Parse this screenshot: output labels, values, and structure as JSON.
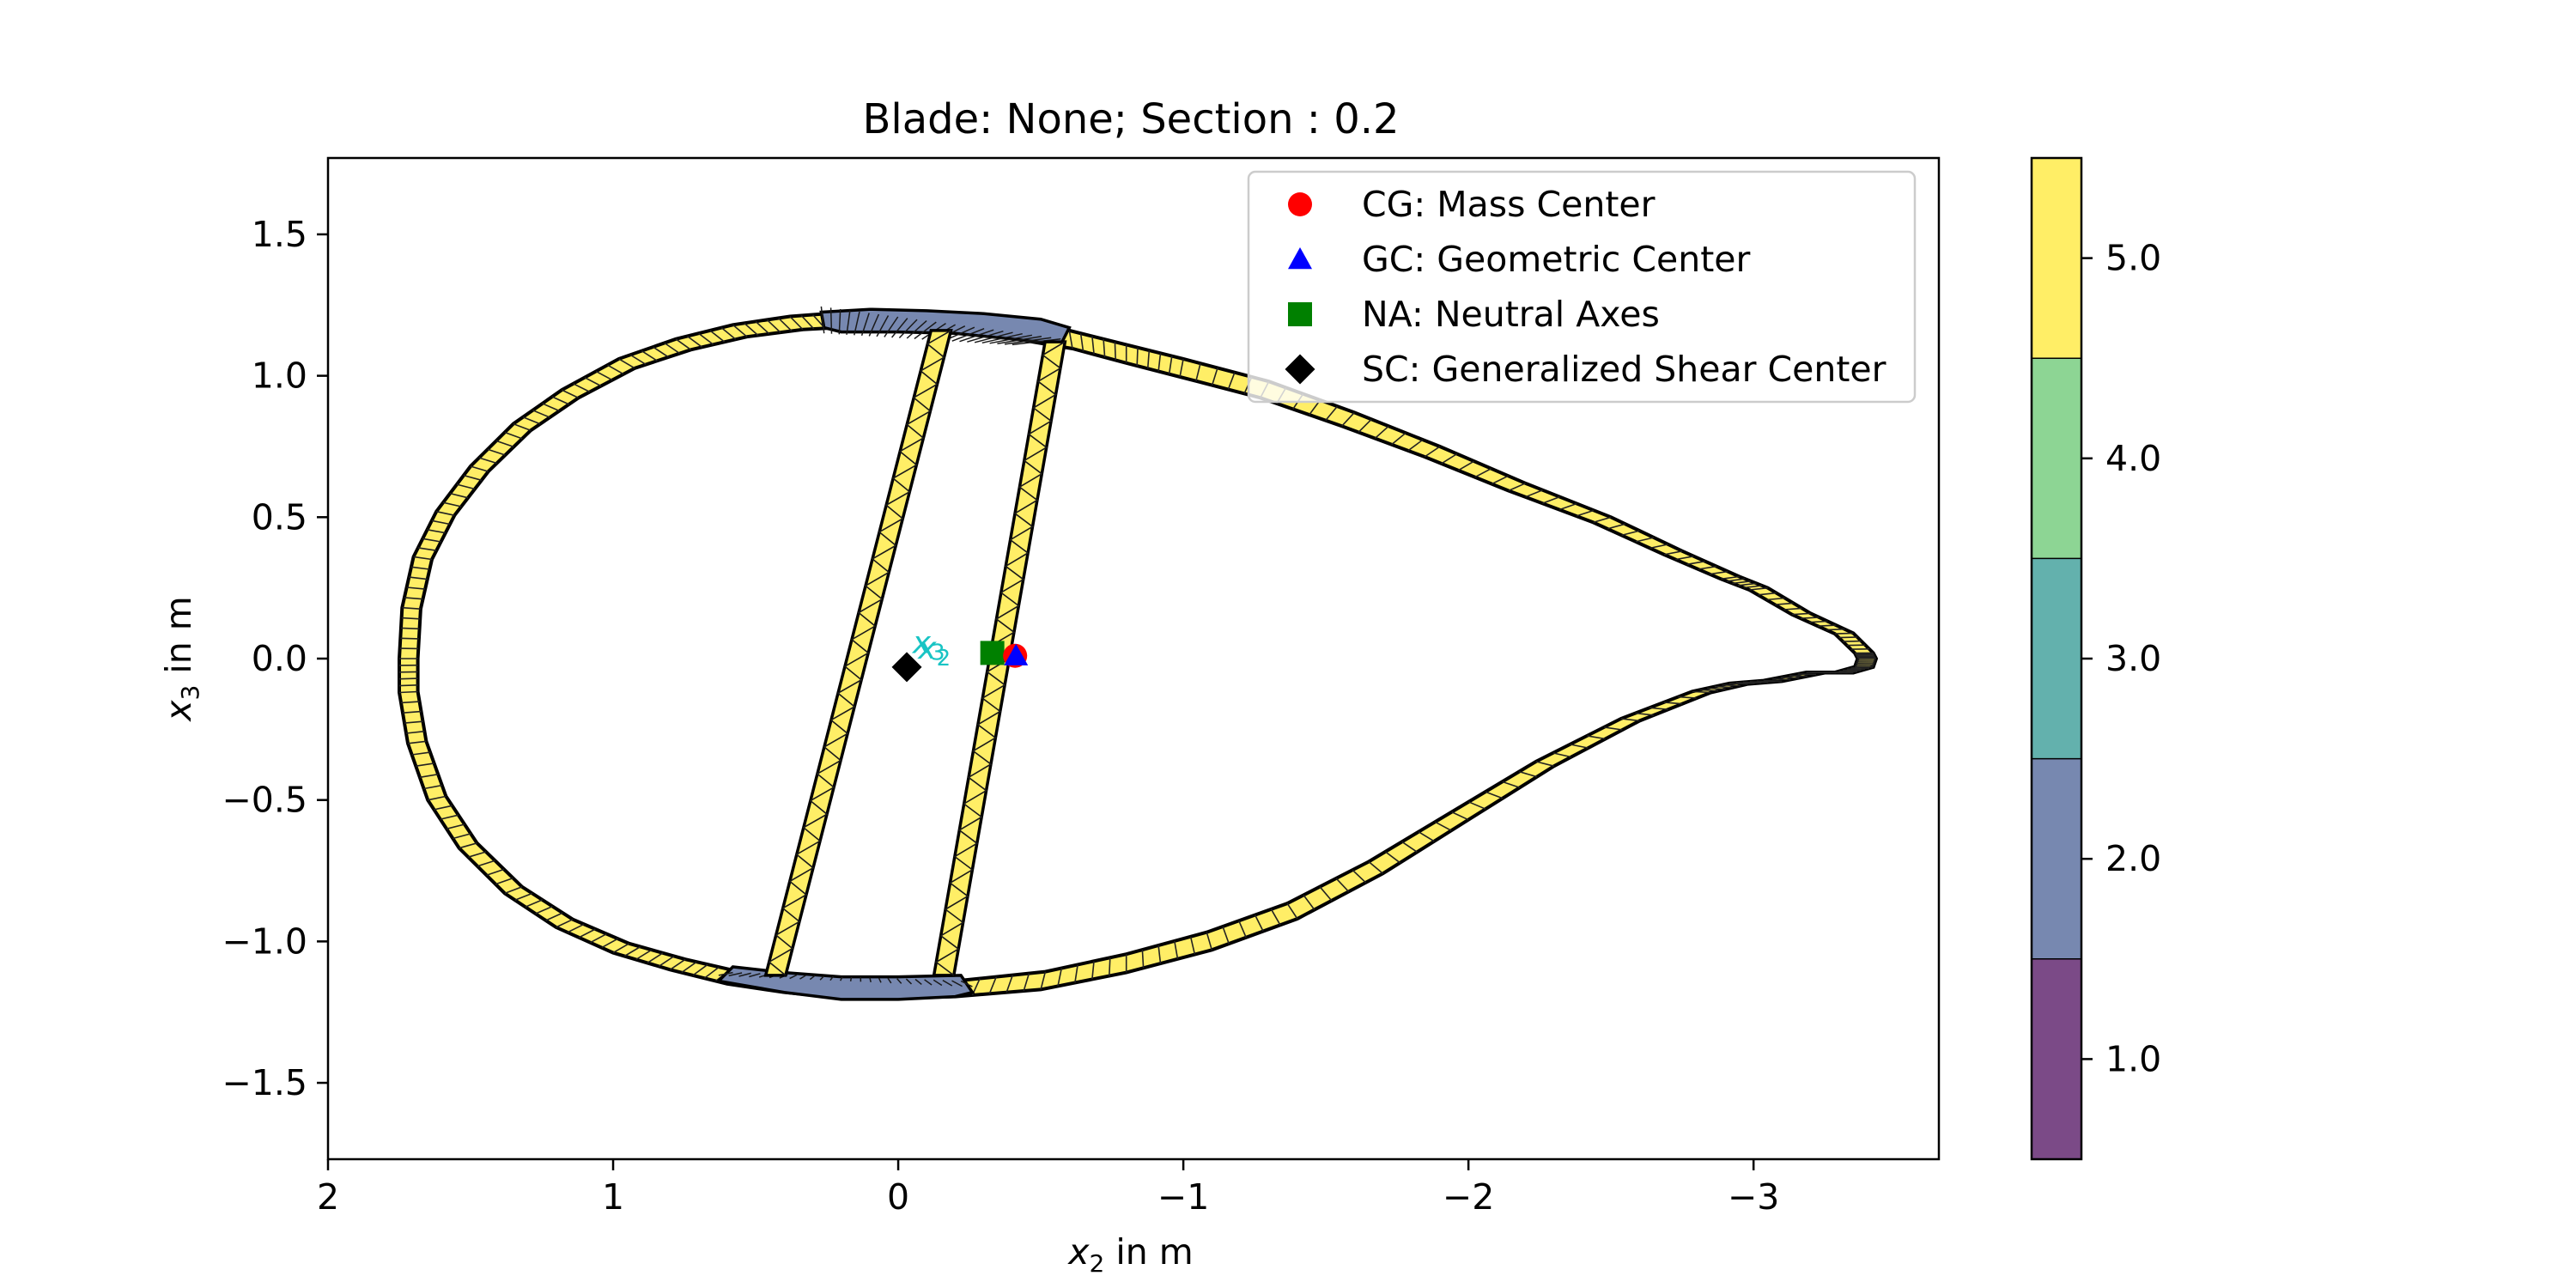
{
  "chart_data": {
    "type": "scatter",
    "title": "Blade: None; Section : 0.2",
    "xlabel": {
      "var": "x",
      "sub": "2",
      "unit": " in m"
    },
    "ylabel": {
      "var": "x",
      "sub": "3",
      "unit": " in m"
    },
    "xlim": [
      2.0,
      -3.65
    ],
    "ylim": [
      -1.77,
      1.77
    ],
    "xticks": [
      2,
      1,
      0,
      -1,
      -2,
      -3
    ],
    "yticks": [
      1.5,
      1.0,
      0.5,
      0.0,
      -0.5,
      -1.0,
      -1.5
    ],
    "grid": false,
    "legend_position": "top-right",
    "series": [
      {
        "name": "CG: Mass Center",
        "marker": "circle",
        "color": "#ff0000",
        "points": [
          [
            -0.41,
            0.01
          ]
        ]
      },
      {
        "name": "GC: Geometric Center",
        "marker": "triangle",
        "color": "#0000ff",
        "points": [
          [
            -0.41,
            0.01
          ]
        ]
      },
      {
        "name": "NA: Neutral Axes",
        "marker": "square",
        "color": "#008000",
        "points": [
          [
            -0.33,
            0.02
          ]
        ]
      },
      {
        "name": "SC: Generalized Shear Center",
        "marker": "diamond",
        "color": "#000000",
        "points": [
          [
            -0.03,
            -0.03
          ]
        ]
      }
    ],
    "annotations": [
      {
        "var": "x",
        "sub": "3",
        "x": -0.05,
        "y": 0.02,
        "color": "#19c4c4"
      },
      {
        "var": "x",
        "sub": "2",
        "x": -0.07,
        "y": 0.0,
        "color": "#19c4c4"
      }
    ],
    "colorbar": {
      "ticks": [
        "1.0",
        "2.0",
        "3.0",
        "4.0",
        "5.0"
      ],
      "range": [
        0.5,
        5.5
      ],
      "bands": [
        {
          "from": 0.5,
          "to": 1.5,
          "color": "#7b4a87"
        },
        {
          "from": 1.5,
          "to": 2.5,
          "color": "#7788b0"
        },
        {
          "from": 2.5,
          "to": 3.5,
          "color": "#63b1ad"
        },
        {
          "from": 3.5,
          "to": 4.5,
          "color": "#8dd594"
        },
        {
          "from": 4.5,
          "to": 5.5,
          "color": "#ffee66"
        }
      ]
    },
    "material_colors": {
      "skin": "#ffee66",
      "spar_cap": "#7788b0"
    }
  }
}
